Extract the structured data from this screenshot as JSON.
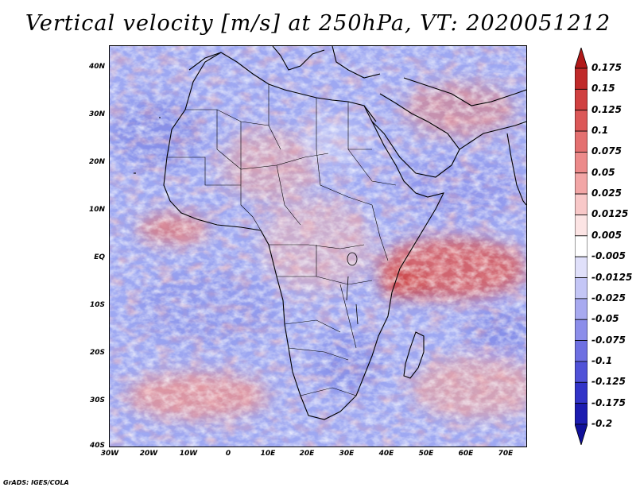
{
  "title": "Vertical velocity [m/s] at 250hPa, VT: 2020051212",
  "credit": "GrADS: IGES/COLA",
  "lat_ticks": [
    "40N",
    "30N",
    "20N",
    "10N",
    "EQ",
    "10S",
    "20S",
    "30S",
    "40S"
  ],
  "lon_ticks": [
    "30W",
    "20W",
    "10W",
    "0",
    "10E",
    "20E",
    "30E",
    "40E",
    "50E",
    "60E",
    "70E"
  ],
  "colorbar": {
    "labels": [
      "0.175",
      "0.15",
      "0.125",
      "0.1",
      "0.075",
      "0.05",
      "0.025",
      "0.0125",
      "0.005",
      "-0.005",
      "-0.0125",
      "-0.025",
      "-0.05",
      "-0.075",
      "-0.1",
      "-0.125",
      "-0.175",
      "-0.2"
    ],
    "colors": [
      "#b01818",
      "#c02a2a",
      "#d04040",
      "#dc5858",
      "#e47070",
      "#ec8a8a",
      "#f2a6a6",
      "#f8c8c8",
      "#fce4e4",
      "#ffffff",
      "#e0e0fa",
      "#c4c6f6",
      "#a8aaf0",
      "#8c8eea",
      "#6e70e2",
      "#5052d8",
      "#3234c8",
      "#1c1cb0",
      "#10109a"
    ]
  }
}
